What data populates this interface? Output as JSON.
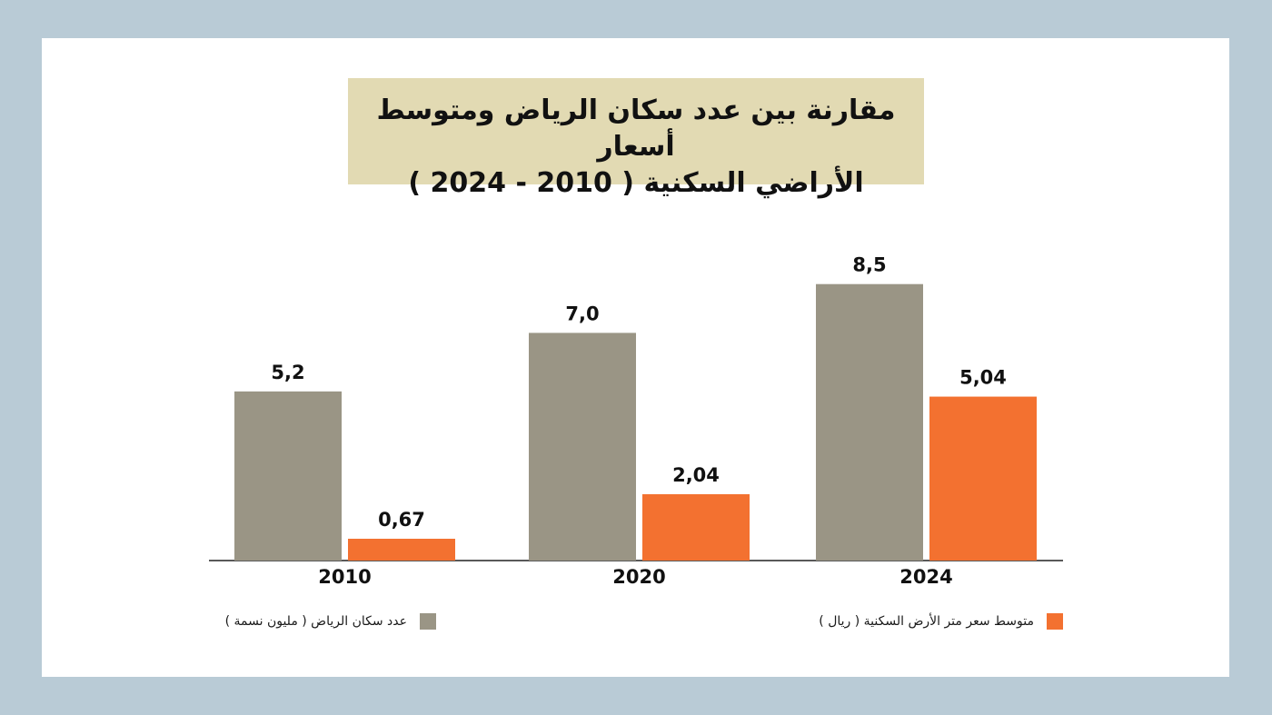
{
  "chart_data": {
    "type": "bar",
    "title_line1": "مقارنة بين عدد سكان الرياض ومتوسط أسعار",
    "title_line2": "الأراضي السكنية ( 2010 - 2024 )",
    "categories": [
      "2010",
      "2020",
      "2024"
    ],
    "series": [
      {
        "name": "عدد سكان الرياض ( مليون نسمة )",
        "values": [
          5.2,
          7.0,
          8.5
        ],
        "labels": [
          "5,2",
          "7,0",
          "8,5"
        ],
        "color": "#9a9585"
      },
      {
        "name": "متوسط سعر متر الأرض السكنية ( ريال )",
        "values": [
          0.67,
          2.04,
          5.04
        ],
        "labels": [
          "0,67",
          "2,04",
          "5,04"
        ],
        "color": "#f37130"
      }
    ],
    "ylim": [
      0,
      9
    ],
    "grid": false,
    "legend": "bottom"
  },
  "colors": {
    "outer_background": "#b9cbd6",
    "card": "#ffffff",
    "title_box": "#e2dab3"
  }
}
